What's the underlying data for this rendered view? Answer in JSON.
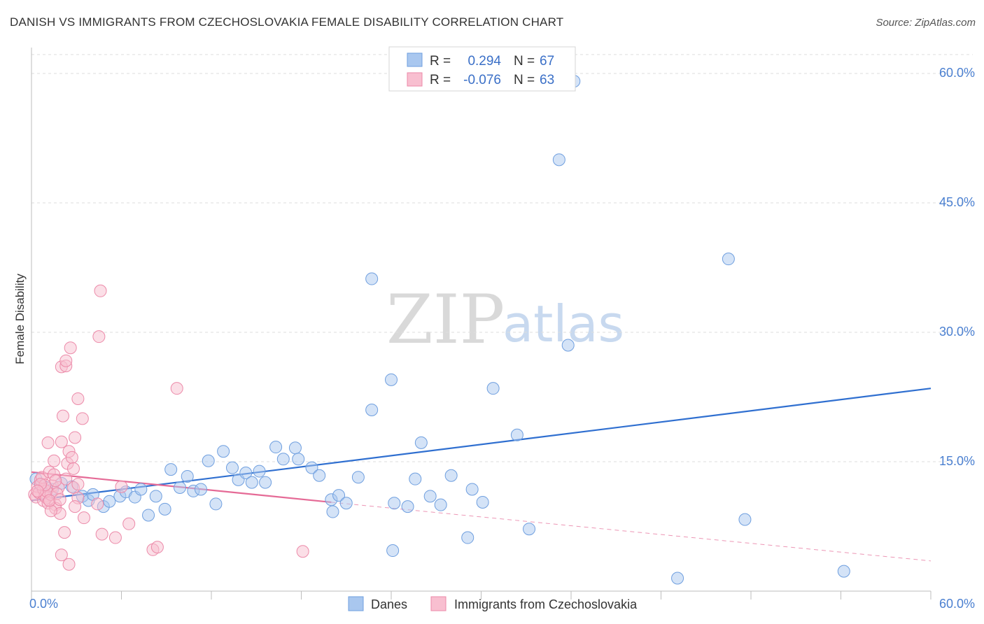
{
  "title": "DANISH VS IMMIGRANTS FROM CZECHOSLOVAKIA FEMALE DISABILITY CORRELATION CHART",
  "source": "Source: ZipAtlas.com",
  "watermark": {
    "zip": "ZIP",
    "atlas": "atlas"
  },
  "legend": {
    "r_label": "R =",
    "n_label": "N =",
    "entries": [
      {
        "r": "0.294",
        "n": "67",
        "color": "#a9c7ef",
        "stroke": "#6f9fdf"
      },
      {
        "r": "-0.076",
        "n": "63",
        "color": "#f8bfd0",
        "stroke": "#ec8aa9"
      }
    ]
  },
  "chart_data": {
    "type": "scatter",
    "title": "DANISH VS IMMIGRANTS FROM CZECHOSLOVAKIA FEMALE DISABILITY CORRELATION CHART",
    "xlabel": "",
    "ylabel": "Female Disability",
    "xlim": [
      0,
      60
    ],
    "ylim": [
      0,
      63
    ],
    "x_tick_labels": [
      "0.0%",
      "60.0%"
    ],
    "y_ticks": [
      15,
      30,
      45,
      60
    ],
    "y_tick_labels": [
      "15.0%",
      "30.0%",
      "45.0%",
      "60.0%"
    ],
    "grid": true,
    "series": [
      {
        "name": "Danes",
        "color": "#a9c7ef",
        "stroke": "#6f9fdf",
        "trend": {
          "x": [
            0,
            60
          ],
          "y": [
            10.5,
            23.5
          ],
          "color": "#2f6fd0"
        },
        "points": [
          [
            0.3,
            13.0
          ],
          [
            0.6,
            12.2
          ],
          [
            1.0,
            12.0
          ],
          [
            1.4,
            11.8
          ],
          [
            2.0,
            12.5
          ],
          [
            2.7,
            12.1
          ],
          [
            3.4,
            11.0
          ],
          [
            3.8,
            10.5
          ],
          [
            4.1,
            11.2
          ],
          [
            4.8,
            9.8
          ],
          [
            5.2,
            10.4
          ],
          [
            5.9,
            11.0
          ],
          [
            6.3,
            11.5
          ],
          [
            6.9,
            10.9
          ],
          [
            7.3,
            11.8
          ],
          [
            7.8,
            8.8
          ],
          [
            8.3,
            11.0
          ],
          [
            8.9,
            9.5
          ],
          [
            9.3,
            14.1
          ],
          [
            9.9,
            12.0
          ],
          [
            10.4,
            13.3
          ],
          [
            10.8,
            11.6
          ],
          [
            11.3,
            11.8
          ],
          [
            11.8,
            15.1
          ],
          [
            12.3,
            10.1
          ],
          [
            12.8,
            16.2
          ],
          [
            13.4,
            14.3
          ],
          [
            13.8,
            12.9
          ],
          [
            14.3,
            13.7
          ],
          [
            14.7,
            12.6
          ],
          [
            15.2,
            13.9
          ],
          [
            15.6,
            12.6
          ],
          [
            16.3,
            16.7
          ],
          [
            16.8,
            15.3
          ],
          [
            17.6,
            16.6
          ],
          [
            17.8,
            15.3
          ],
          [
            18.7,
            14.3
          ],
          [
            19.2,
            13.4
          ],
          [
            20.0,
            10.6
          ],
          [
            20.1,
            9.2
          ],
          [
            20.5,
            11.1
          ],
          [
            21.0,
            10.2
          ],
          [
            21.8,
            13.2
          ],
          [
            22.7,
            36.2
          ],
          [
            22.7,
            21.0
          ],
          [
            24.0,
            24.5
          ],
          [
            24.1,
            4.7
          ],
          [
            24.2,
            10.2
          ],
          [
            25.1,
            9.8
          ],
          [
            25.6,
            13.0
          ],
          [
            26.0,
            17.2
          ],
          [
            26.6,
            11.0
          ],
          [
            27.3,
            10.0
          ],
          [
            28.0,
            13.4
          ],
          [
            29.1,
            6.2
          ],
          [
            29.4,
            11.8
          ],
          [
            30.1,
            10.3
          ],
          [
            30.8,
            23.5
          ],
          [
            32.4,
            18.1
          ],
          [
            33.2,
            7.2
          ],
          [
            35.2,
            50.0
          ],
          [
            35.8,
            28.5
          ],
          [
            36.2,
            59.1
          ],
          [
            43.1,
            1.5
          ],
          [
            46.5,
            38.5
          ],
          [
            47.6,
            8.3
          ],
          [
            54.2,
            2.3
          ]
        ]
      },
      {
        "name": "Immigrants from Czechoslovakia",
        "color": "#f8bfd0",
        "stroke": "#ec8aa9",
        "trend": {
          "x": [
            0,
            20
          ],
          "y": [
            13.8,
            10.3
          ],
          "color": "#e56a96",
          "dashed_to_x": 60,
          "dashed_end_y": 3.5
        },
        "points": [
          [
            0.2,
            11.2
          ],
          [
            0.3,
            10.9
          ],
          [
            0.4,
            12.1
          ],
          [
            0.5,
            11.4
          ],
          [
            0.6,
            12.9
          ],
          [
            0.7,
            13.2
          ],
          [
            0.8,
            11.8
          ],
          [
            0.8,
            10.5
          ],
          [
            0.9,
            11.0
          ],
          [
            1.0,
            10.8
          ],
          [
            1.1,
            10.2
          ],
          [
            1.2,
            13.8
          ],
          [
            1.3,
            11.2
          ],
          [
            1.1,
            17.2
          ],
          [
            1.4,
            12.2
          ],
          [
            1.5,
            13.5
          ],
          [
            1.5,
            15.1
          ],
          [
            1.6,
            10.0
          ],
          [
            1.6,
            9.6
          ],
          [
            1.8,
            12.0
          ],
          [
            1.9,
            9.0
          ],
          [
            2.0,
            26.0
          ],
          [
            2.0,
            4.2
          ],
          [
            2.0,
            17.3
          ],
          [
            2.1,
            20.3
          ],
          [
            2.2,
            6.8
          ],
          [
            2.3,
            26.1
          ],
          [
            2.3,
            26.7
          ],
          [
            2.4,
            14.8
          ],
          [
            2.5,
            3.1
          ],
          [
            2.5,
            16.2
          ],
          [
            2.6,
            28.2
          ],
          [
            2.7,
            15.5
          ],
          [
            2.8,
            12.0
          ],
          [
            2.8,
            14.2
          ],
          [
            2.9,
            17.8
          ],
          [
            3.1,
            12.4
          ],
          [
            3.1,
            10.8
          ],
          [
            3.1,
            22.3
          ],
          [
            3.4,
            20.0
          ],
          [
            3.5,
            8.5
          ],
          [
            4.5,
            29.5
          ],
          [
            4.6,
            34.8
          ],
          [
            4.7,
            6.6
          ],
          [
            5.6,
            6.2
          ],
          [
            6.0,
            12.1
          ],
          [
            6.5,
            7.8
          ],
          [
            8.1,
            4.8
          ],
          [
            8.4,
            5.1
          ],
          [
            9.7,
            23.5
          ],
          [
            18.1,
            4.6
          ],
          [
            1.0,
            11.6
          ],
          [
            1.7,
            11.3
          ],
          [
            0.9,
            12.3
          ],
          [
            1.3,
            9.3
          ],
          [
            2.9,
            9.8
          ],
          [
            4.4,
            10.1
          ],
          [
            1.2,
            10.5
          ],
          [
            0.6,
            12.4
          ],
          [
            2.3,
            13.0
          ],
          [
            1.9,
            10.6
          ],
          [
            0.4,
            11.6
          ],
          [
            1.6,
            12.8
          ]
        ]
      }
    ]
  }
}
